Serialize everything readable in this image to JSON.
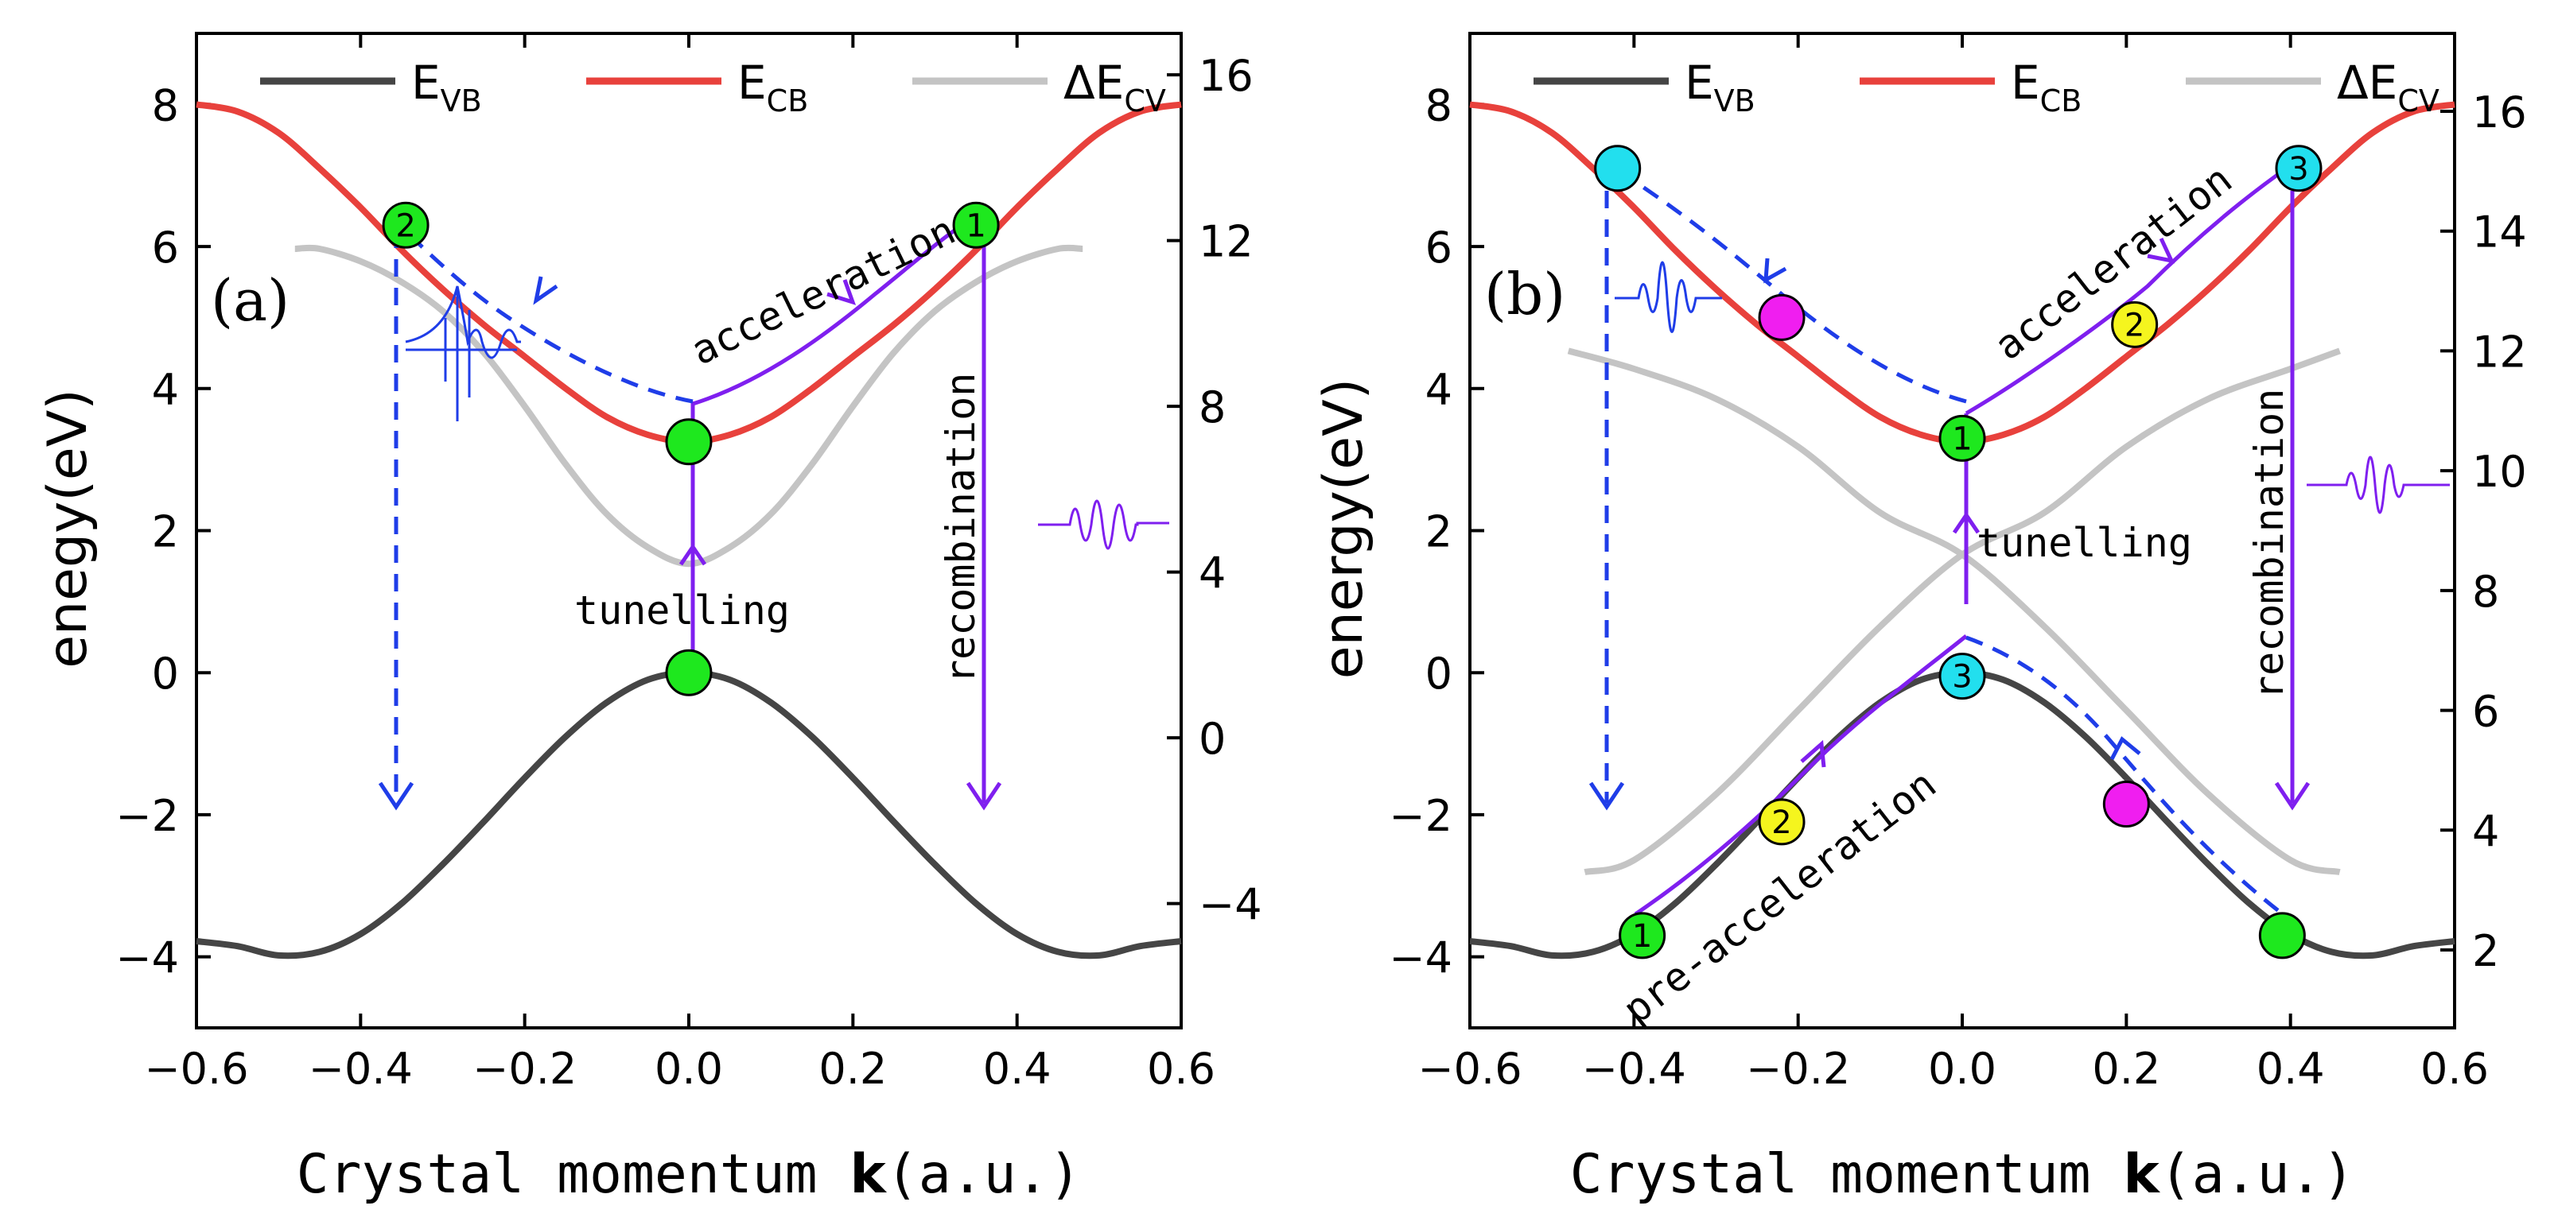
{
  "figure": {
    "xlabel_prefix": "Crystal momentum ",
    "xlabel_bold": "k",
    "xlabel_suffix": "(a.u.)"
  },
  "legend": [
    {
      "key": "vb",
      "main": "E",
      "sub": "VB",
      "color": "#454545"
    },
    {
      "key": "cb",
      "main": "E",
      "sub": "CB",
      "color": "#e8413c"
    },
    {
      "key": "cv",
      "main": "ΔE",
      "sub": "CV",
      "color": "#c4c4c4"
    }
  ],
  "colors": {
    "green": "#1ee81e",
    "cyan": "#22dfee",
    "magenta": "#f01ef0",
    "yellow": "#f5f51e",
    "blue": "#1f3de8",
    "purple": "#7f1fef"
  },
  "chart_data": [
    {
      "type": "line",
      "panel_label": "(a)",
      "ylabel": "enegy(eV)",
      "xlim": [
        -0.6,
        0.6
      ],
      "ylim": [
        -5,
        9
      ],
      "y2lim": [
        -7,
        17
      ],
      "xticks": [
        "−0.6",
        "−0.4",
        "−0.2",
        "0.0",
        "0.2",
        "0.4",
        "0.6"
      ],
      "xtick_values": [
        -0.6,
        -0.4,
        -0.2,
        0.0,
        0.2,
        0.4,
        0.6
      ],
      "yticks": [
        "−4",
        "−2",
        "0",
        "2",
        "4",
        "6",
        "8"
      ],
      "ytick_values": [
        -4,
        -2,
        0,
        2,
        4,
        6,
        8
      ],
      "y2ticks": [
        "−4",
        "0",
        "4",
        "8",
        "12",
        "16"
      ],
      "y2tick_values": [
        -4,
        0,
        4,
        8,
        12,
        16
      ],
      "series": [
        {
          "name": "E_VB",
          "x": [
            -0.6,
            -0.55,
            -0.5,
            -0.45,
            -0.4,
            -0.35,
            -0.3,
            -0.25,
            -0.2,
            -0.15,
            -0.1,
            -0.05,
            0,
            0.05,
            0.1,
            0.15,
            0.2,
            0.25,
            0.3,
            0.35,
            0.4,
            0.45,
            0.5,
            0.55,
            0.6
          ],
          "y": [
            -3.78,
            -3.85,
            -3.98,
            -3.93,
            -3.68,
            -3.25,
            -2.7,
            -2.1,
            -1.48,
            -0.9,
            -0.42,
            -0.1,
            0,
            -0.1,
            -0.42,
            -0.9,
            -1.48,
            -2.1,
            -2.7,
            -3.25,
            -3.68,
            -3.93,
            -3.98,
            -3.85,
            -3.78
          ]
        },
        {
          "name": "E_CB",
          "x": [
            -0.6,
            -0.55,
            -0.5,
            -0.45,
            -0.4,
            -0.35,
            -0.3,
            -0.25,
            -0.2,
            -0.15,
            -0.1,
            -0.05,
            0,
            0.05,
            0.1,
            0.15,
            0.2,
            0.25,
            0.3,
            0.35,
            0.4,
            0.45,
            0.5,
            0.55,
            0.6
          ],
          "y": [
            8.0,
            7.9,
            7.6,
            7.1,
            6.55,
            5.95,
            5.4,
            4.9,
            4.45,
            4.0,
            3.6,
            3.35,
            3.25,
            3.35,
            3.6,
            4.0,
            4.45,
            4.9,
            5.4,
            5.95,
            6.55,
            7.1,
            7.6,
            7.9,
            8.0
          ]
        },
        {
          "name": "ΔE_CV",
          "x": [
            -0.48,
            -0.45,
            -0.4,
            -0.35,
            -0.3,
            -0.25,
            -0.2,
            -0.15,
            -0.1,
            -0.05,
            0,
            0.05,
            0.1,
            0.15,
            0.2,
            0.25,
            0.3,
            0.35,
            0.4,
            0.45,
            0.48
          ],
          "y": [
            11.8,
            11.8,
            11.5,
            11.0,
            10.3,
            9.3,
            8.0,
            6.6,
            5.4,
            4.6,
            4.2,
            4.6,
            5.4,
            6.6,
            8.0,
            9.3,
            10.3,
            11.0,
            11.5,
            11.8,
            11.8
          ],
          "axis": "right"
        }
      ],
      "markers": [
        {
          "label": "2",
          "x": -0.345,
          "y": 6.3,
          "color": "green"
        },
        {
          "label": "1",
          "x": 0.35,
          "y": 6.3,
          "color": "green"
        },
        {
          "label": "",
          "x": 0.0,
          "y": 3.25,
          "color": "green"
        },
        {
          "label": "",
          "x": 0.0,
          "y": 0.0,
          "color": "green"
        }
      ],
      "annotations": [
        "acceleration",
        "tunelling",
        "recombination"
      ]
    },
    {
      "type": "line",
      "panel_label": "(b)",
      "ylabel": "energy(eV)",
      "xlim": [
        -0.6,
        0.6
      ],
      "ylim": [
        -5,
        9
      ],
      "y2lim": [
        0.7,
        17.3
      ],
      "xticks": [
        "−0.6",
        "−0.4",
        "−0.2",
        "0.0",
        "0.2",
        "0.4",
        "0.6"
      ],
      "xtick_values": [
        -0.6,
        -0.4,
        -0.2,
        0.0,
        0.2,
        0.4,
        0.6
      ],
      "yticks": [
        "−4",
        "−2",
        "0",
        "2",
        "4",
        "6",
        "8"
      ],
      "ytick_values": [
        -4,
        -2,
        0,
        2,
        4,
        6,
        8
      ],
      "y2ticks": [
        "2",
        "4",
        "6",
        "8",
        "10",
        "12",
        "14",
        "16"
      ],
      "y2tick_values": [
        2,
        4,
        6,
        8,
        10,
        12,
        14,
        16
      ],
      "series": [
        {
          "name": "E_VB",
          "x": [
            -0.6,
            -0.55,
            -0.5,
            -0.45,
            -0.4,
            -0.35,
            -0.3,
            -0.25,
            -0.2,
            -0.15,
            -0.1,
            -0.05,
            0,
            0.05,
            0.1,
            0.15,
            0.2,
            0.25,
            0.3,
            0.35,
            0.4,
            0.45,
            0.5,
            0.55,
            0.6
          ],
          "y": [
            -3.78,
            -3.85,
            -3.98,
            -3.93,
            -3.68,
            -3.25,
            -2.7,
            -2.1,
            -1.48,
            -0.9,
            -0.42,
            -0.1,
            0,
            -0.1,
            -0.42,
            -0.9,
            -1.48,
            -2.1,
            -2.7,
            -3.25,
            -3.68,
            -3.93,
            -3.98,
            -3.85,
            -3.78
          ]
        },
        {
          "name": "E_CB",
          "x": [
            -0.6,
            -0.55,
            -0.5,
            -0.45,
            -0.4,
            -0.35,
            -0.3,
            -0.25,
            -0.2,
            -0.15,
            -0.1,
            -0.05,
            0,
            0.05,
            0.1,
            0.15,
            0.2,
            0.25,
            0.3,
            0.35,
            0.4,
            0.45,
            0.5,
            0.55,
            0.6
          ],
          "y": [
            8.0,
            7.9,
            7.6,
            7.1,
            6.55,
            5.95,
            5.4,
            4.9,
            4.45,
            4.0,
            3.6,
            3.35,
            3.25,
            3.35,
            3.6,
            4.0,
            4.45,
            4.9,
            5.4,
            5.95,
            6.55,
            7.1,
            7.6,
            7.9,
            8.0
          ]
        },
        {
          "name": "ΔE_CV (upper)",
          "x": [
            -0.48,
            -0.4,
            -0.3,
            -0.2,
            -0.1,
            0,
            0.1,
            0.2,
            0.3,
            0.4,
            0.46
          ],
          "y": [
            12.0,
            11.7,
            11.2,
            10.4,
            9.3,
            8.6,
            7.4,
            6.0,
            4.6,
            3.5,
            3.3
          ],
          "axis": "right"
        },
        {
          "name": "ΔE_CV (lower)",
          "x": [
            -0.46,
            -0.4,
            -0.3,
            -0.2,
            -0.1,
            0,
            0.1,
            0.2,
            0.3,
            0.4,
            0.46
          ],
          "y": [
            3.3,
            3.5,
            4.6,
            6.0,
            7.4,
            8.6,
            9.3,
            10.4,
            11.2,
            11.7,
            12.0
          ],
          "axis": "right"
        }
      ],
      "markers": [
        {
          "label": "",
          "x": -0.42,
          "y": 7.1,
          "color": "cyan"
        },
        {
          "label": "",
          "x": -0.22,
          "y": 5.0,
          "color": "magenta"
        },
        {
          "label": "1",
          "x": 0.0,
          "y": 3.3,
          "color": "green"
        },
        {
          "label": "2",
          "x": 0.21,
          "y": 4.9,
          "color": "yellow"
        },
        {
          "label": "3",
          "x": 0.41,
          "y": 7.1,
          "color": "cyan"
        },
        {
          "label": "1",
          "x": -0.39,
          "y": -3.7,
          "color": "green"
        },
        {
          "label": "2",
          "x": -0.22,
          "y": -2.1,
          "color": "yellow"
        },
        {
          "label": "3",
          "x": 0.0,
          "y": -0.05,
          "color": "cyan"
        },
        {
          "label": "",
          "x": 0.2,
          "y": -1.85,
          "color": "magenta"
        },
        {
          "label": "",
          "x": 0.39,
          "y": -3.7,
          "color": "green"
        }
      ],
      "annotations": [
        "acceleration",
        "tunelling",
        "recombination",
        "pre-acceleration"
      ]
    }
  ]
}
